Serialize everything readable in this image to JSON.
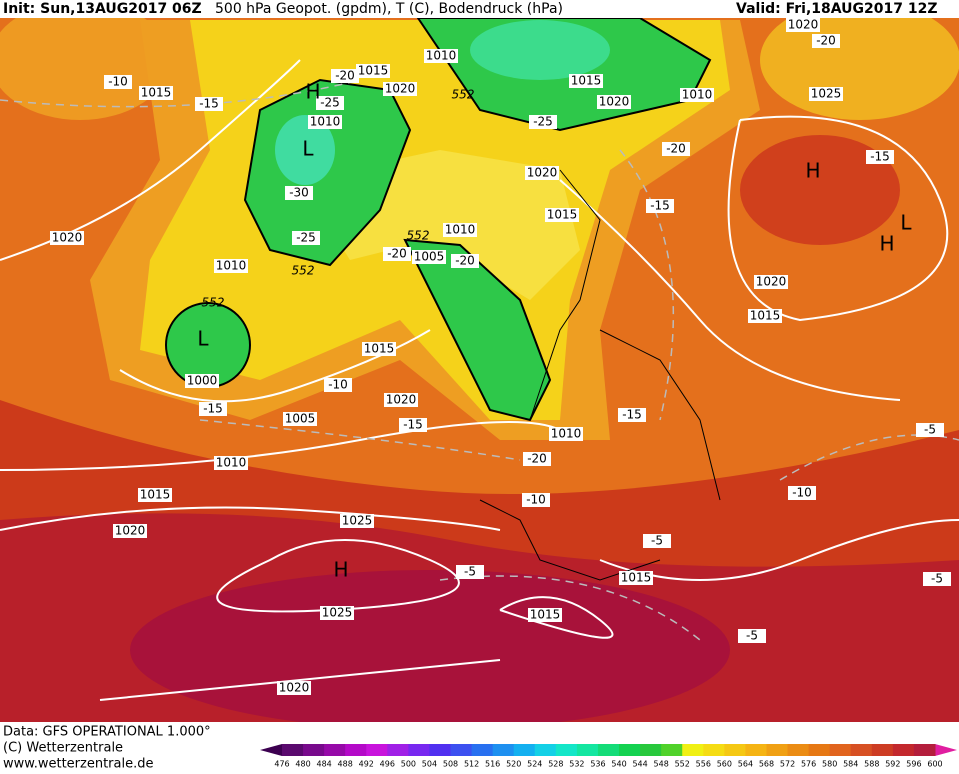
{
  "header": {
    "init": "Init: Sun,13AUG2017 06Z",
    "title": "500 hPa Geopot. (gpdm), T (C), Bodendruck (hPa)",
    "valid": "Valid: Fri,18AUG2017 12Z"
  },
  "footer": {
    "data": "Data: GFS OPERATIONAL 1.000°",
    "copyright": "(C) Wetterzentrale",
    "url": "www.wetterzentrale.de"
  },
  "colorbar": {
    "labels": [
      "476",
      "480",
      "484",
      "488",
      "492",
      "496",
      "500",
      "504",
      "508",
      "512",
      "516",
      "520",
      "524",
      "528",
      "532",
      "536",
      "540",
      "544",
      "548",
      "552",
      "556",
      "560",
      "564",
      "568",
      "572",
      "576",
      "580",
      "584",
      "588",
      "592",
      "596",
      "600"
    ],
    "colors": [
      "#5a0a6e",
      "#780a8c",
      "#960aa8",
      "#b40ac8",
      "#c814dc",
      "#a020e6",
      "#7828f0",
      "#5030f0",
      "#3c50f0",
      "#2870f0",
      "#1e90f0",
      "#14b0f0",
      "#14d0e6",
      "#14e6c8",
      "#14e6a0",
      "#14dc78",
      "#14d250",
      "#28c83c",
      "#50d22a",
      "#f0f014",
      "#f5dc14",
      "#f5c814",
      "#f5b414",
      "#f0a014",
      "#eb8c14",
      "#e67814",
      "#e1641e",
      "#d75023",
      "#cd3c23",
      "#c3282d",
      "#b41e3c"
    ]
  },
  "map": {
    "isobar_labels": [
      "1015",
      "1010",
      "1015",
      "1020",
      "1010",
      "1015",
      "1020",
      "1010",
      "1020",
      "1025",
      "1020",
      "1015",
      "1010",
      "1005",
      "1020",
      "1010",
      "1015",
      "1000",
      "1005",
      "1020",
      "1010",
      "1020",
      "1015",
      "1010",
      "1015",
      "1020",
      "1025",
      "1015",
      "1015",
      "1025",
      "1020"
    ],
    "isotherm_labels": [
      "-10",
      "-15",
      "-20",
      "-25",
      "-30",
      "-25",
      "-20",
      "-15",
      "-20",
      "-15",
      "-25",
      "-20",
      "-20",
      "-10",
      "-15",
      "-15",
      "-15",
      "-20",
      "-10",
      "-10",
      "-5",
      "-5",
      "-5",
      "-5",
      "-5"
    ],
    "contour_labels": [
      "552",
      "552",
      "552",
      "552"
    ],
    "centers": [
      "H",
      "L",
      "H",
      "L",
      "H",
      "L",
      "H"
    ]
  }
}
